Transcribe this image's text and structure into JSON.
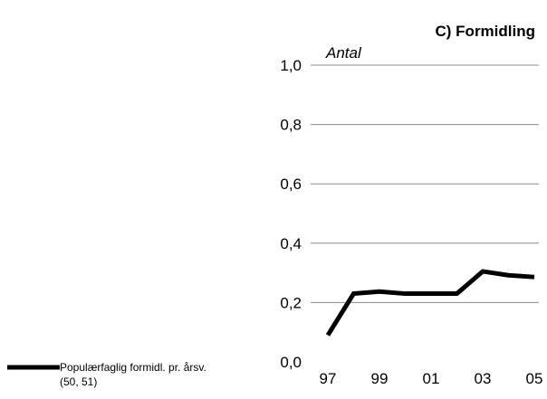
{
  "chart_data": {
    "type": "line",
    "title": "C) Formidling",
    "ylabel": "Antal",
    "xlabel": "",
    "ylim": [
      0,
      1.0
    ],
    "yticks": [
      "0,0",
      "0,2",
      "0,4",
      "0,6",
      "0,8",
      "1,0"
    ],
    "ytick_values": [
      0,
      0.2,
      0.4,
      0.6,
      0.8,
      1.0
    ],
    "x": [
      1997,
      1998,
      1999,
      2000,
      2001,
      2002,
      2003,
      2004,
      2005
    ],
    "xticks": [
      "97",
      "99",
      "01",
      "03",
      "05"
    ],
    "xtick_values": [
      1997,
      1999,
      2001,
      2003,
      2005
    ],
    "grid": true,
    "legend_position": "bottom-left",
    "series": [
      {
        "name": "Populærfaglig formidl. pr. årsv.",
        "name_line2": "(50, 51)",
        "values": [
          0.09,
          0.23,
          0.237,
          0.23,
          0.23,
          0.23,
          0.305,
          0.292,
          0.286
        ],
        "color": "#000000"
      }
    ]
  }
}
